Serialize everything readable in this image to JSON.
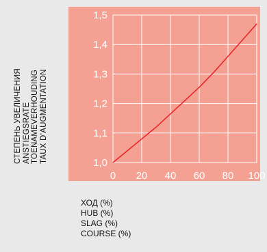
{
  "colors": {
    "background": "#e9e9e9",
    "plot_fill": "#f4a193",
    "grid": "#ffffff",
    "line": "#e8262a",
    "tick_text": "#ffffff"
  },
  "ylabel_lines": [
    "СТЕПЕНЬ УВЕЛИЧЕНИЯ",
    "ANSTIEGSRATE",
    "TOENAMEVERHOUDING",
    "TAUX D’AUGMENTATION"
  ],
  "xlabel_lines": [
    "ХОД (%)",
    "HUB (%)",
    "SLAG (%)",
    "COURSE (%)"
  ],
  "chart_data": {
    "type": "line",
    "title": "",
    "xlim": [
      0,
      100
    ],
    "ylim": [
      1.0,
      1.5
    ],
    "x_ticks": [
      0,
      20,
      40,
      60,
      80,
      100
    ],
    "x_tick_labels": [
      "0",
      "20",
      "40",
      "60",
      "80",
      "100"
    ],
    "y_ticks": [
      1.0,
      1.1,
      1.2,
      1.3,
      1.4,
      1.5
    ],
    "y_tick_labels": [
      "1,0",
      "1,1",
      "1,2",
      "1,3",
      "1,4",
      "1,5"
    ],
    "grid": true,
    "series": [
      {
        "x": [
          0,
          10,
          20,
          30,
          40,
          50,
          60,
          70,
          80,
          90,
          100
        ],
        "y": [
          1.0,
          1.04,
          1.08,
          1.12,
          1.165,
          1.21,
          1.255,
          1.305,
          1.36,
          1.415,
          1.47
        ]
      }
    ]
  }
}
